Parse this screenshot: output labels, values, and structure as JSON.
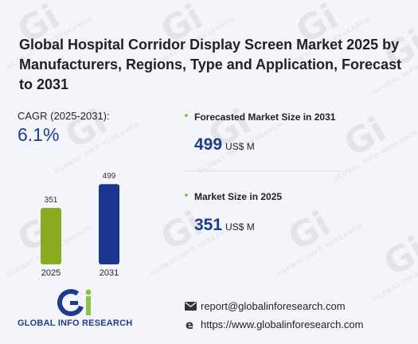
{
  "title": "Global Hospital Corridor Display Screen Market 2025 by Manufacturers, Regions, Type and Application, Forecast to 2031",
  "cagr": {
    "label": "CAGR (2025-2031):",
    "value": "6.1%"
  },
  "kpis": [
    {
      "label": "Forecasted Market Size in 2031",
      "value": "499",
      "unit": "US$ M"
    },
    {
      "label": "Market Size in 2025",
      "value": "351",
      "unit": "US$ M"
    }
  ],
  "chart_data": {
    "type": "bar",
    "categories": [
      "2025",
      "2031"
    ],
    "values": [
      351,
      499
    ],
    "data_labels": [
      "351",
      "499"
    ],
    "colors": [
      "#8aab1f",
      "#1c3590"
    ],
    "ylim": [
      0,
      520
    ],
    "grid": false,
    "legend": "none"
  },
  "brand": {
    "logo_letters": "Gi",
    "name": "GLOBAL INFO RESEARCH",
    "watermark_text": "GLOBAL INFO RESEARCH"
  },
  "contact": {
    "email": "report@globalinforesearch.com",
    "website": "https://www.globalinforesearch.com",
    "email_icon": "envelope-icon",
    "website_icon": "browser-e-icon"
  },
  "colors": {
    "accent_blue": "#1c3c8c",
    "accent_green": "#8bc34a",
    "background": "#f3f5fa"
  }
}
